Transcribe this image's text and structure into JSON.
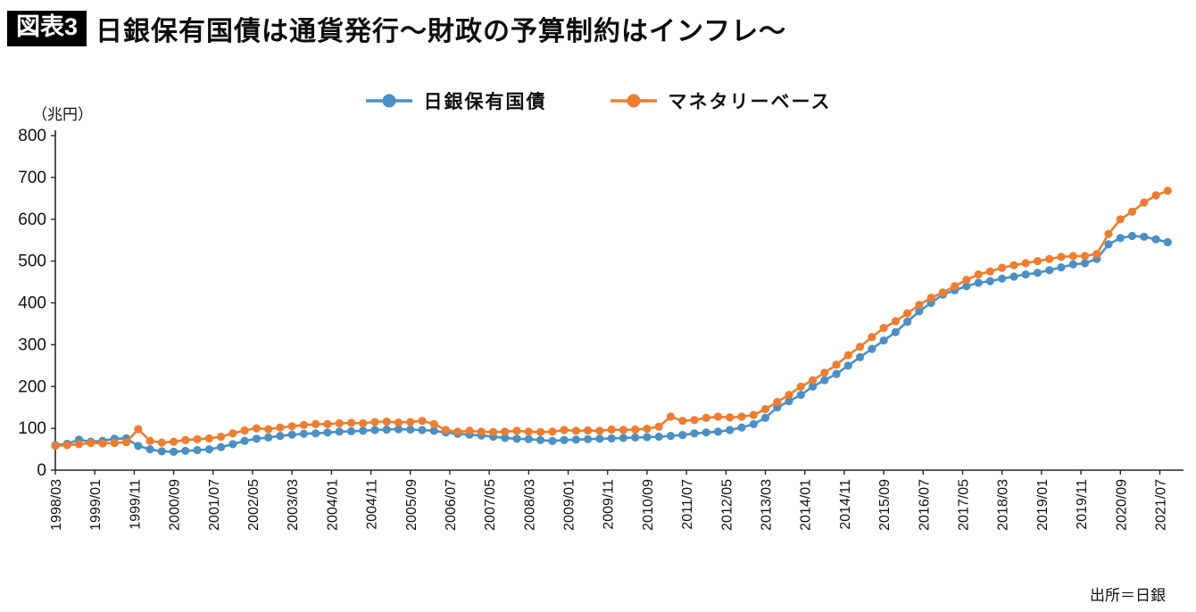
{
  "header": {
    "badge": "図表3",
    "title": "日銀保有国債は通貨発行～財政の予算制約はインフレ～"
  },
  "chart_data": {
    "type": "line",
    "unit_label": "（兆円）",
    "source": "出所＝日銀",
    "x_start": "1998/03",
    "x_step_months": 3,
    "x_total_months": 286,
    "x_tick_every_months": 10,
    "x_tick_labels": [
      "1998/03",
      "1999/01",
      "1999/11",
      "2000/09",
      "2001/07",
      "2002/05",
      "2003/03",
      "2004/01",
      "2004/11",
      "2005/09",
      "2006/07",
      "2007/05",
      "2008/03",
      "2009/01",
      "2009/11",
      "2010/09",
      "2011/07",
      "2012/05",
      "2013/03",
      "2014/01",
      "2014/11",
      "2015/09",
      "2016/07",
      "2017/05",
      "2018/03",
      "2019/01",
      "2019/11",
      "2020/09",
      "2021/07"
    ],
    "ylim": [
      0,
      800
    ],
    "y_ticks": [
      0,
      100,
      200,
      300,
      400,
      500,
      600,
      700,
      800
    ],
    "grid": "off",
    "legend_position": "top-center",
    "series": [
      {
        "name": "日銀保有国債",
        "color": "#4a90c4",
        "values": [
          60,
          63,
          73,
          68,
          70,
          75,
          76,
          58,
          50,
          45,
          44,
          46,
          48,
          50,
          55,
          62,
          70,
          75,
          78,
          82,
          85,
          87,
          88,
          90,
          92,
          93,
          94,
          96,
          97,
          98,
          97,
          96,
          94,
          90,
          87,
          85,
          83,
          80,
          77,
          75,
          74,
          72,
          70,
          72,
          73,
          74,
          75,
          76,
          77,
          78,
          79,
          80,
          82,
          84,
          88,
          90,
          92,
          96,
          102,
          110,
          125,
          150,
          165,
          180,
          200,
          215,
          230,
          250,
          270,
          290,
          310,
          330,
          355,
          380,
          400,
          420,
          430,
          440,
          448,
          452,
          458,
          463,
          468,
          472,
          478,
          485,
          492,
          495,
          505,
          540,
          555,
          560,
          558,
          552,
          545
        ]
      },
      {
        "name": "マネタリーベース",
        "color": "#ee7d30",
        "values": [
          58,
          60,
          62,
          65,
          64,
          65,
          67,
          98,
          70,
          66,
          68,
          72,
          74,
          76,
          80,
          88,
          95,
          100,
          98,
          102,
          105,
          108,
          110,
          110,
          112,
          113,
          112,
          115,
          116,
          114,
          115,
          118,
          110,
          96,
          92,
          94,
          92,
          91,
          92,
          94,
          92,
          91,
          92,
          96,
          94,
          95,
          94,
          97,
          96,
          97,
          99,
          104,
          128,
          118,
          120,
          125,
          128,
          126,
          128,
          132,
          146,
          163,
          180,
          200,
          215,
          233,
          252,
          275,
          295,
          318,
          340,
          356,
          375,
          395,
          412,
          425,
          440,
          455,
          468,
          475,
          484,
          490,
          495,
          500,
          505,
          510,
          512,
          512,
          517,
          565,
          600,
          618,
          640,
          657,
          668
        ]
      }
    ]
  }
}
